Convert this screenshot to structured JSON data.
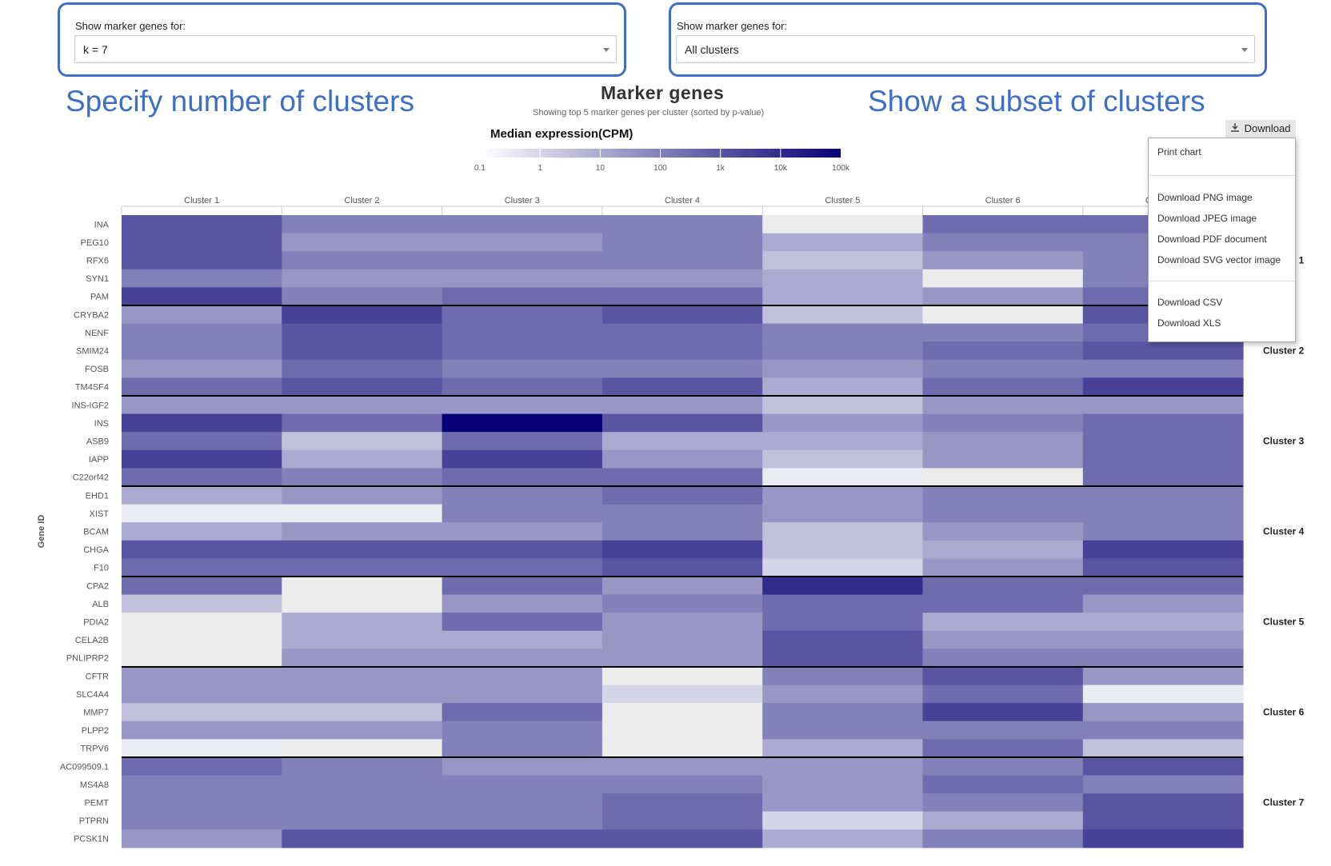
{
  "controls": {
    "left": {
      "label": "Show marker genes for:",
      "value": "k = 7"
    },
    "right": {
      "label": "Show marker genes for:",
      "value": "All clusters"
    }
  },
  "annotations": {
    "left": "Specify number of clusters",
    "right": "Show a subset of clusters"
  },
  "colors": {
    "annotation": "#3f6fc4",
    "missing": "#ececec",
    "low": "#ffffff",
    "high": "#080075",
    "divider": "#000000"
  },
  "export_menu": {
    "button_label": "Download",
    "items": [
      "Print chart",
      "Download PNG image",
      "Download JPEG image",
      "Download PDF document",
      "Download SVG vector image",
      "Download CSV",
      "Download XLS"
    ]
  },
  "chart_data": {
    "type": "heatmap",
    "title": "Marker genes",
    "subtitle": "Showing top 5 marker genes per cluster (sorted by p-value)",
    "legend_title": "Median expression(CPM)",
    "colorbar_ticks": [
      "0.1",
      "1",
      "10",
      "100",
      "1k",
      "10k",
      "100k"
    ],
    "color_scale": "log10",
    "ylabel": "Gene ID",
    "columns": [
      "Cluster 1",
      "Cluster 2",
      "Cluster 3",
      "Cluster 4",
      "Cluster 5",
      "Cluster 6",
      "Cluster 7"
    ],
    "row_groups": [
      "Cluster 1",
      "Cluster 2",
      "Cluster 3",
      "Cluster 4",
      "Cluster 5",
      "Cluster 6",
      "Cluster 7"
    ],
    "genes": [
      "INA",
      "PEG10",
      "RFX6",
      "SYN1",
      "PAM",
      "CRYBA2",
      "NENF",
      "SMIM24",
      "FOSB",
      "TM4SF4",
      "INS-IGF2",
      "INS",
      "ASB9",
      "IAPP",
      "C22orf42",
      "EHD1",
      "XIST",
      "BCAM",
      "CHGA",
      "F10",
      "CPA2",
      "ALB",
      "PDIA2",
      "CELA2B",
      "PNLIPRP2",
      "CFTR",
      "SLC4A4",
      "MMP7",
      "PLPP2",
      "TRPV6",
      "AC099509.1",
      "MS4A8",
      "PEMT",
      "PTPRN",
      "PCSK1N"
    ],
    "values": [
      [
        1000,
        100,
        100,
        100,
        null,
        300,
        300
      ],
      [
        1000,
        30,
        30,
        100,
        10,
        100,
        100
      ],
      [
        1000,
        100,
        100,
        100,
        3,
        30,
        100
      ],
      [
        100,
        30,
        30,
        30,
        10,
        null,
        100
      ],
      [
        3000,
        100,
        300,
        300,
        10,
        30,
        300
      ],
      [
        30,
        3000,
        300,
        1000,
        3,
        null,
        1000
      ],
      [
        100,
        1000,
        300,
        300,
        100,
        100,
        300
      ],
      [
        100,
        1000,
        300,
        300,
        100,
        300,
        1000
      ],
      [
        30,
        300,
        100,
        100,
        30,
        100,
        100
      ],
      [
        300,
        1000,
        300,
        1000,
        10,
        300,
        3000
      ],
      [
        30,
        30,
        30,
        30,
        3,
        30,
        30
      ],
      [
        3000,
        300,
        100000,
        1000,
        30,
        100,
        300
      ],
      [
        300,
        3,
        300,
        10,
        10,
        30,
        300
      ],
      [
        3000,
        10,
        3000,
        30,
        3,
        30,
        300
      ],
      [
        300,
        100,
        300,
        300,
        0.3,
        null,
        300
      ],
      [
        10,
        30,
        100,
        300,
        30,
        100,
        100
      ],
      [
        0.3,
        0.3,
        100,
        100,
        30,
        100,
        100
      ],
      [
        10,
        30,
        30,
        100,
        3,
        30,
        100
      ],
      [
        1000,
        1000,
        1000,
        3000,
        3,
        10,
        3000
      ],
      [
        300,
        300,
        300,
        1000,
        1,
        30,
        1000
      ],
      [
        300,
        null,
        300,
        30,
        10000,
        300,
        300
      ],
      [
        3,
        null,
        30,
        100,
        300,
        300,
        30
      ],
      [
        null,
        10,
        300,
        30,
        300,
        10,
        10
      ],
      [
        null,
        10,
        10,
        30,
        1000,
        30,
        30
      ],
      [
        null,
        30,
        30,
        30,
        1000,
        100,
        100
      ],
      [
        30,
        30,
        30,
        null,
        100,
        1000,
        30
      ],
      [
        30,
        30,
        30,
        1,
        30,
        300,
        0.3
      ],
      [
        3,
        3,
        300,
        null,
        100,
        3000,
        30
      ],
      [
        30,
        30,
        100,
        null,
        100,
        100,
        100
      ],
      [
        0.3,
        null,
        100,
        null,
        10,
        300,
        3
      ],
      [
        300,
        100,
        30,
        30,
        30,
        100,
        1000
      ],
      [
        100,
        100,
        100,
        100,
        30,
        300,
        100
      ],
      [
        100,
        100,
        100,
        300,
        30,
        100,
        1000
      ],
      [
        100,
        100,
        100,
        300,
        1,
        10,
        1000
      ],
      [
        30,
        1000,
        1000,
        1000,
        10,
        100,
        3000
      ]
    ]
  }
}
